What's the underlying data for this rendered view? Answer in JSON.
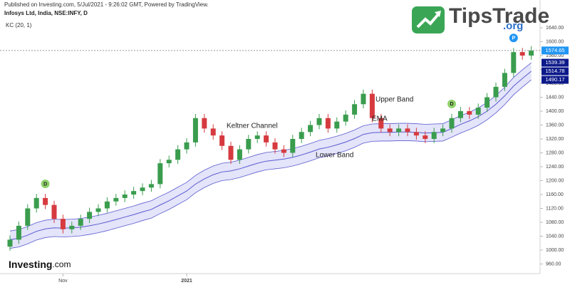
{
  "chart_data": {
    "type": "candlestick",
    "source": "Published on Investing.com, 5/Jul/2021 - 9:26:02 GMT, Powered by TradingView.",
    "title": "Infosys Ltd, India, NSE:INFY, D",
    "indicator": "KC (20, 1)",
    "logo": {
      "name": "TipsTrade",
      "suffix": ".org"
    },
    "brand": {
      "name": "Investing",
      "suffix": ".com"
    },
    "annotations": [
      "Keltner Channel",
      "Upper Band",
      "EMA",
      "Lower Band"
    ],
    "markers": [
      "D",
      "D",
      "P"
    ],
    "categories": [
      null,
      null,
      null,
      null,
      null,
      null,
      "Nov",
      null,
      null,
      null,
      null,
      null,
      null,
      null,
      null,
      null,
      null,
      null,
      null,
      null,
      "2021",
      null,
      null,
      null,
      null,
      null,
      null,
      null,
      null,
      null,
      null,
      null,
      null,
      null,
      null,
      null,
      null,
      null,
      null,
      null,
      null,
      null,
      null,
      null,
      null,
      null,
      null,
      null,
      null,
      null,
      null,
      null,
      null,
      null,
      null,
      null,
      null,
      null,
      null,
      null
    ],
    "open": [
      1010,
      1030,
      1070,
      1120,
      1150,
      1130,
      1090,
      1060,
      1070,
      1090,
      1110,
      1120,
      1140,
      1150,
      1160,
      1170,
      1180,
      1190,
      1250,
      1260,
      1290,
      1310,
      1380,
      1350,
      1330,
      1300,
      1260,
      1290,
      1320,
      1330,
      1310,
      1290,
      1280,
      1320,
      1340,
      1360,
      1380,
      1350,
      1370,
      1390,
      1420,
      1450,
      1380,
      1350,
      1340,
      1350,
      1340,
      1330,
      1320,
      1340,
      1350,
      1380,
      1400,
      1390,
      1410,
      1440,
      1470,
      1510,
      1570,
      1560
    ],
    "high": [
      1042,
      1082,
      1132,
      1162,
      1162,
      1142,
      1102,
      1082,
      1102,
      1122,
      1132,
      1152,
      1162,
      1172,
      1182,
      1192,
      1202,
      1262,
      1272,
      1302,
      1322,
      1392,
      1392,
      1362,
      1342,
      1312,
      1302,
      1332,
      1342,
      1342,
      1322,
      1302,
      1332,
      1352,
      1372,
      1392,
      1392,
      1382,
      1402,
      1432,
      1462,
      1462,
      1392,
      1362,
      1362,
      1362,
      1352,
      1342,
      1352,
      1362,
      1392,
      1412,
      1412,
      1422,
      1452,
      1482,
      1522,
      1582,
      1582,
      1587
    ],
    "low": [
      998,
      1018,
      1058,
      1108,
      1118,
      1078,
      1048,
      1048,
      1058,
      1078,
      1098,
      1108,
      1128,
      1138,
      1148,
      1158,
      1168,
      1178,
      1238,
      1248,
      1278,
      1298,
      1338,
      1318,
      1288,
      1248,
      1248,
      1278,
      1308,
      1298,
      1278,
      1268,
      1268,
      1308,
      1328,
      1348,
      1338,
      1338,
      1358,
      1378,
      1408,
      1368,
      1338,
      1328,
      1328,
      1328,
      1318,
      1308,
      1308,
      1328,
      1338,
      1368,
      1378,
      1378,
      1398,
      1428,
      1458,
      1498,
      1548,
      1548
    ],
    "close": [
      1030,
      1070,
      1120,
      1150,
      1130,
      1090,
      1060,
      1070,
      1090,
      1110,
      1120,
      1140,
      1150,
      1160,
      1170,
      1180,
      1190,
      1250,
      1260,
      1290,
      1310,
      1380,
      1350,
      1330,
      1300,
      1260,
      1290,
      1320,
      1330,
      1310,
      1290,
      1280,
      1320,
      1340,
      1360,
      1380,
      1350,
      1370,
      1390,
      1420,
      1450,
      1380,
      1350,
      1340,
      1350,
      1340,
      1330,
      1320,
      1340,
      1350,
      1380,
      1400,
      1390,
      1410,
      1440,
      1470,
      1510,
      1570,
      1560,
      1574.65
    ],
    "up_color": "#3a9d4e",
    "down_color": "#d63a3f",
    "price_color": "#2196f3",
    "series": [
      {
        "name": "Upper Band",
        "color": "#5a5ad0",
        "values": [
          1055,
          1059,
          1068,
          1079,
          1086,
          1089,
          1088,
          1089,
          1091,
          1095,
          1100,
          1106,
          1113,
          1120,
          1127,
          1135,
          1142,
          1155,
          1167,
          1181,
          1195,
          1215,
          1230,
          1242,
          1250,
          1253,
          1259,
          1267,
          1275,
          1281,
          1284,
          1287,
          1292,
          1299,
          1307,
          1316,
          1321,
          1328,
          1336,
          1346,
          1358,
          1363,
          1364,
          1364,
          1365,
          1365,
          1364,
          1362,
          1363,
          1364,
          1375,
          1387,
          1397,
          1409,
          1425,
          1445,
          1469,
          1497,
          1519,
          1539.39
        ]
      },
      {
        "name": "EMA",
        "color": "#5a5ad0",
        "values": [
          1030,
          1034,
          1043,
          1054,
          1061,
          1064,
          1063,
          1064,
          1066,
          1070,
          1075,
          1081,
          1088,
          1095,
          1102,
          1110,
          1117,
          1130,
          1142,
          1156,
          1170,
          1190,
          1205,
          1217,
          1225,
          1228,
          1234,
          1242,
          1250,
          1256,
          1259,
          1262,
          1267,
          1274,
          1282,
          1291,
          1296,
          1303,
          1311,
          1321,
          1333,
          1338,
          1339,
          1339,
          1340,
          1340,
          1339,
          1337,
          1338,
          1339,
          1350,
          1362,
          1372,
          1384,
          1400,
          1420,
          1444,
          1472,
          1494,
          1514.78
        ]
      },
      {
        "name": "Lower Band",
        "color": "#5a5ad0",
        "values": [
          1005,
          1009,
          1018,
          1029,
          1036,
          1039,
          1038,
          1039,
          1041,
          1045,
          1050,
          1056,
          1063,
          1070,
          1077,
          1085,
          1092,
          1105,
          1117,
          1131,
          1145,
          1165,
          1180,
          1192,
          1200,
          1203,
          1209,
          1217,
          1225,
          1231,
          1234,
          1237,
          1242,
          1249,
          1257,
          1266,
          1271,
          1278,
          1286,
          1296,
          1308,
          1313,
          1314,
          1314,
          1315,
          1315,
          1314,
          1312,
          1313,
          1314,
          1325,
          1337,
          1347,
          1359,
          1375,
          1395,
          1419,
          1447,
          1469,
          1490.17
        ]
      }
    ],
    "channel_color": "#e4e4fa",
    "label_box_color": "#0d1a8a",
    "ylim": [
      920,
      1720
    ],
    "yticks": [
      {
        "value": 960,
        "label": "960.00"
      },
      {
        "value": 1000,
        "label": "1000.00"
      },
      {
        "value": 1040,
        "label": "1040.00"
      },
      {
        "value": 1080,
        "label": "1080.00"
      },
      {
        "value": 1120,
        "label": "1120.00"
      },
      {
        "value": 1160,
        "label": "1160.00"
      },
      {
        "value": 1200,
        "label": "1200.00"
      },
      {
        "value": 1240,
        "label": "1240.00"
      },
      {
        "value": 1280,
        "label": "1280.00"
      },
      {
        "value": 1320,
        "label": "1320.00"
      },
      {
        "value": 1360,
        "label": "1360.00"
      },
      {
        "value": 1400,
        "label": "1400.00"
      },
      {
        "value": 1440,
        "label": "1440.00"
      },
      {
        "value": 1480,
        "label": "1480.00"
      },
      {
        "value": 1520,
        "label": "1520.00"
      },
      {
        "value": 1560,
        "label": "1560.00"
      },
      {
        "value": 1600,
        "label": "1600.00"
      },
      {
        "value": 1640,
        "label": "1640.00"
      }
    ],
    "grid": false
  }
}
